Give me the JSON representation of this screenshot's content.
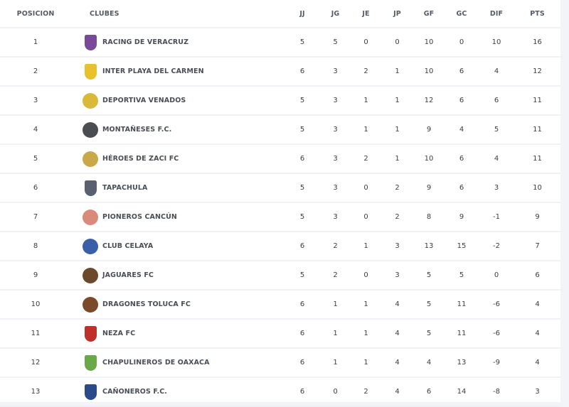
{
  "table": {
    "headers": {
      "pos": "POSICION",
      "club": "CLUBES",
      "jj": "JJ",
      "jg": "JG",
      "je": "JE",
      "jp": "JP",
      "gf": "GF",
      "gc": "GC",
      "dif": "DIF",
      "pts": "PTS"
    },
    "rows": [
      {
        "pos": "1",
        "club": "RACING DE VERACRUZ",
        "logo": "racing-veracruz-crest",
        "color": "#7a4a9a",
        "shape": "shield",
        "jj": "5",
        "jg": "5",
        "je": "0",
        "jp": "0",
        "gf": "10",
        "gc": "0",
        "dif": "10",
        "pts": "16"
      },
      {
        "pos": "2",
        "club": "INTER PLAYA DEL CARMEN",
        "logo": "inter-playa-crest",
        "color": "#e8c22a",
        "shape": "shield",
        "jj": "6",
        "jg": "3",
        "je": "2",
        "jp": "1",
        "gf": "10",
        "gc": "6",
        "dif": "4",
        "pts": "12"
      },
      {
        "pos": "3",
        "club": "DEPORTIVA VENADOS",
        "logo": "venados-crest",
        "color": "#d9b83a",
        "shape": "circle",
        "jj": "5",
        "jg": "3",
        "je": "1",
        "jp": "1",
        "gf": "12",
        "gc": "6",
        "dif": "6",
        "pts": "11"
      },
      {
        "pos": "4",
        "club": "MONTAÑESES F.C.",
        "logo": "montaneses-crest",
        "color": "#4a4d52",
        "shape": "circle",
        "jj": "5",
        "jg": "3",
        "je": "1",
        "jp": "1",
        "gf": "9",
        "gc": "4",
        "dif": "5",
        "pts": "11"
      },
      {
        "pos": "5",
        "club": "HÉROES DE ZACI FC",
        "logo": "heroes-zaci-crest",
        "color": "#c9a84a",
        "shape": "circle",
        "jj": "6",
        "jg": "3",
        "je": "2",
        "jp": "1",
        "gf": "10",
        "gc": "6",
        "dif": "4",
        "pts": "11"
      },
      {
        "pos": "6",
        "club": "TAPACHULA",
        "logo": "tapachula-crest",
        "color": "#5a6070",
        "shape": "shield",
        "jj": "5",
        "jg": "3",
        "je": "0",
        "jp": "2",
        "gf": "9",
        "gc": "6",
        "dif": "3",
        "pts": "10"
      },
      {
        "pos": "7",
        "club": "PIONEROS CANCÚN",
        "logo": "pioneros-cancun-crest",
        "color": "#d98a7a",
        "shape": "circle",
        "jj": "5",
        "jg": "3",
        "je": "0",
        "jp": "2",
        "gf": "8",
        "gc": "9",
        "dif": "-1",
        "pts": "9"
      },
      {
        "pos": "8",
        "club": "CLUB CELAYA",
        "logo": "celaya-crest",
        "color": "#3a5ea8",
        "shape": "circle",
        "jj": "6",
        "jg": "2",
        "je": "1",
        "jp": "3",
        "gf": "13",
        "gc": "15",
        "dif": "-2",
        "pts": "7"
      },
      {
        "pos": "9",
        "club": "JAGUARES FC",
        "logo": "jaguares-crest",
        "color": "#6a4a2a",
        "shape": "circle",
        "jj": "5",
        "jg": "2",
        "je": "0",
        "jp": "3",
        "gf": "5",
        "gc": "5",
        "dif": "0",
        "pts": "6"
      },
      {
        "pos": "10",
        "club": "DRAGONES TOLUCA FC",
        "logo": "dragones-toluca-crest",
        "color": "#7a4a2a",
        "shape": "circle",
        "jj": "6",
        "jg": "1",
        "je": "1",
        "jp": "4",
        "gf": "5",
        "gc": "11",
        "dif": "-6",
        "pts": "4"
      },
      {
        "pos": "11",
        "club": "NEZA FC",
        "logo": "neza-crest",
        "color": "#c0302a",
        "shape": "shield",
        "jj": "6",
        "jg": "1",
        "je": "1",
        "jp": "4",
        "gf": "5",
        "gc": "11",
        "dif": "-6",
        "pts": "4"
      },
      {
        "pos": "12",
        "club": "CHAPULINEROS DE OAXACA",
        "logo": "chapulineros-crest",
        "color": "#6aa84a",
        "shape": "shield",
        "jj": "6",
        "jg": "1",
        "je": "1",
        "jp": "4",
        "gf": "4",
        "gc": "13",
        "dif": "-9",
        "pts": "4"
      },
      {
        "pos": "13",
        "club": "CAÑONEROS F.C.",
        "logo": "canoneros-crest",
        "color": "#2a4a8a",
        "shape": "shield",
        "jj": "6",
        "jg": "0",
        "je": "2",
        "jp": "4",
        "gf": "6",
        "gc": "14",
        "dif": "-8",
        "pts": "3"
      }
    ]
  }
}
